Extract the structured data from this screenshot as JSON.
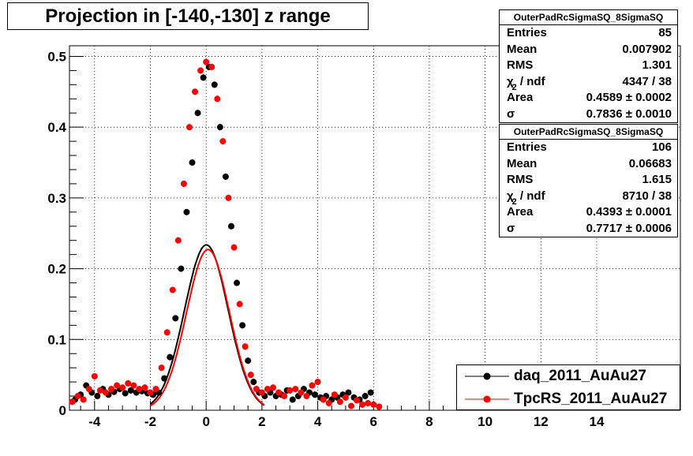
{
  "title": "Projection in [-140,-130] z range",
  "colors": {
    "series1": "#000000",
    "series2": "#ff0000",
    "grid": "#000000"
  },
  "stats": [
    {
      "header": "OuterPadRcSigmaSQ_8SigmaSQ",
      "rows": [
        {
          "key": "Entries",
          "value": "85"
        },
        {
          "key": "Mean",
          "value": "0.007902"
        },
        {
          "key": "RMS",
          "value": "1.301"
        },
        {
          "key": "χ",
          "value": "4347 / 38",
          "sup": "2",
          "suffix": " / ndf"
        },
        {
          "key": "Area",
          "value": "0.4589 ± 0.0002"
        },
        {
          "key": "σ",
          "value": "0.7836 ± 0.0010"
        }
      ]
    },
    {
      "header": "OuterPadRcSigmaSQ_8SigmaSQ",
      "rows": [
        {
          "key": "Entries",
          "value": "106"
        },
        {
          "key": "Mean",
          "value": "0.06683"
        },
        {
          "key": "RMS",
          "value": "1.615"
        },
        {
          "key": "χ",
          "value": "8710 / 38",
          "sup": "2",
          "suffix": " / ndf"
        },
        {
          "key": "Area",
          "value": "0.4393 ± 0.0001"
        },
        {
          "key": "σ",
          "value": "0.7717 ± 0.0006"
        }
      ]
    }
  ],
  "legend": [
    {
      "label": "daq_2011_AuAu27"
    },
    {
      "label": "TpcRS_2011_AuAu27"
    }
  ],
  "chart_data": {
    "type": "scatter",
    "title": "Projection in [-140,-130] z range",
    "xlabel": "",
    "ylabel": "",
    "xlim": [
      -4.9,
      17.0
    ],
    "ylim": [
      0,
      0.515
    ],
    "xticks": [
      -4,
      -2,
      0,
      2,
      4,
      6,
      8,
      10,
      12,
      14
    ],
    "yticks": [
      0,
      0.1,
      0.2,
      0.3,
      0.4,
      0.5
    ],
    "grid": true,
    "legend_position": "bottom-right",
    "series": [
      {
        "name": "daq_2011_AuAu27",
        "x": [
          -4.7,
          -4.5,
          -4.3,
          -4.1,
          -3.9,
          -3.7,
          -3.5,
          -3.3,
          -3.1,
          -2.9,
          -2.7,
          -2.5,
          -2.3,
          -2.1,
          -1.9,
          -1.7,
          -1.5,
          -1.3,
          -1.1,
          -0.9,
          -0.7,
          -0.5,
          -0.3,
          -0.1,
          0.1,
          0.3,
          0.5,
          0.7,
          0.9,
          1.1,
          1.3,
          1.5,
          1.7,
          1.9,
          2.1,
          2.3,
          2.5,
          2.7,
          2.9,
          3.1,
          3.3,
          3.5,
          3.7,
          3.9,
          4.1,
          4.3,
          4.5,
          4.7,
          4.9,
          5.1,
          5.3,
          5.5,
          5.7,
          5.9
        ],
        "y": [
          0.015,
          0.022,
          0.035,
          0.025,
          0.02,
          0.03,
          0.022,
          0.026,
          0.03,
          0.024,
          0.028,
          0.025,
          0.027,
          0.024,
          0.022,
          0.025,
          0.045,
          0.075,
          0.13,
          0.2,
          0.28,
          0.35,
          0.42,
          0.47,
          0.485,
          0.46,
          0.4,
          0.33,
          0.26,
          0.18,
          0.12,
          0.07,
          0.04,
          0.025,
          0.02,
          0.025,
          0.02,
          0.022,
          0.028,
          0.015,
          0.02,
          0.03,
          0.025,
          0.022,
          0.018,
          0.02,
          0.015,
          0.018,
          0.022,
          0.025,
          0.018,
          0.015,
          0.02,
          0.025
        ],
        "fit": {
          "area": 0.4589,
          "mean": 0.007902,
          "sigma": 0.7836
        }
      },
      {
        "name": "TpcRS_2011_AuAu27",
        "x": [
          -4.8,
          -4.6,
          -4.4,
          -4.2,
          -4.0,
          -3.8,
          -3.6,
          -3.4,
          -3.2,
          -3.0,
          -2.8,
          -2.6,
          -2.4,
          -2.2,
          -2.0,
          -1.8,
          -1.6,
          -1.4,
          -1.2,
          -1.0,
          -0.8,
          -0.6,
          -0.4,
          -0.2,
          0.0,
          0.2,
          0.4,
          0.6,
          0.8,
          1.0,
          1.2,
          1.4,
          1.6,
          1.8,
          2.0,
          2.2,
          2.4,
          2.6,
          2.8,
          3.0,
          3.2,
          3.4,
          3.6,
          3.8,
          4.0,
          4.2,
          4.4,
          4.6,
          4.8,
          5.0,
          5.2,
          5.4,
          5.6,
          5.8,
          6.0,
          6.2
        ],
        "y": [
          0.012,
          0.02,
          0.015,
          0.03,
          0.048,
          0.028,
          0.025,
          0.03,
          0.035,
          0.032,
          0.038,
          0.035,
          0.03,
          0.032,
          0.025,
          0.03,
          0.06,
          0.11,
          0.17,
          0.24,
          0.32,
          0.4,
          0.45,
          0.48,
          0.492,
          0.485,
          0.44,
          0.38,
          0.3,
          0.23,
          0.15,
          0.09,
          0.05,
          0.03,
          0.025,
          0.03,
          0.032,
          0.025,
          0.02,
          0.028,
          0.03,
          0.025,
          0.02,
          0.035,
          0.04,
          0.015,
          0.01,
          0.022,
          0.012,
          0.018,
          0.006,
          0.014,
          0.008,
          0.01,
          0.008,
          0.005
        ],
        "fit": {
          "area": 0.4393,
          "mean": 0.06683,
          "sigma": 0.7717
        }
      }
    ]
  }
}
